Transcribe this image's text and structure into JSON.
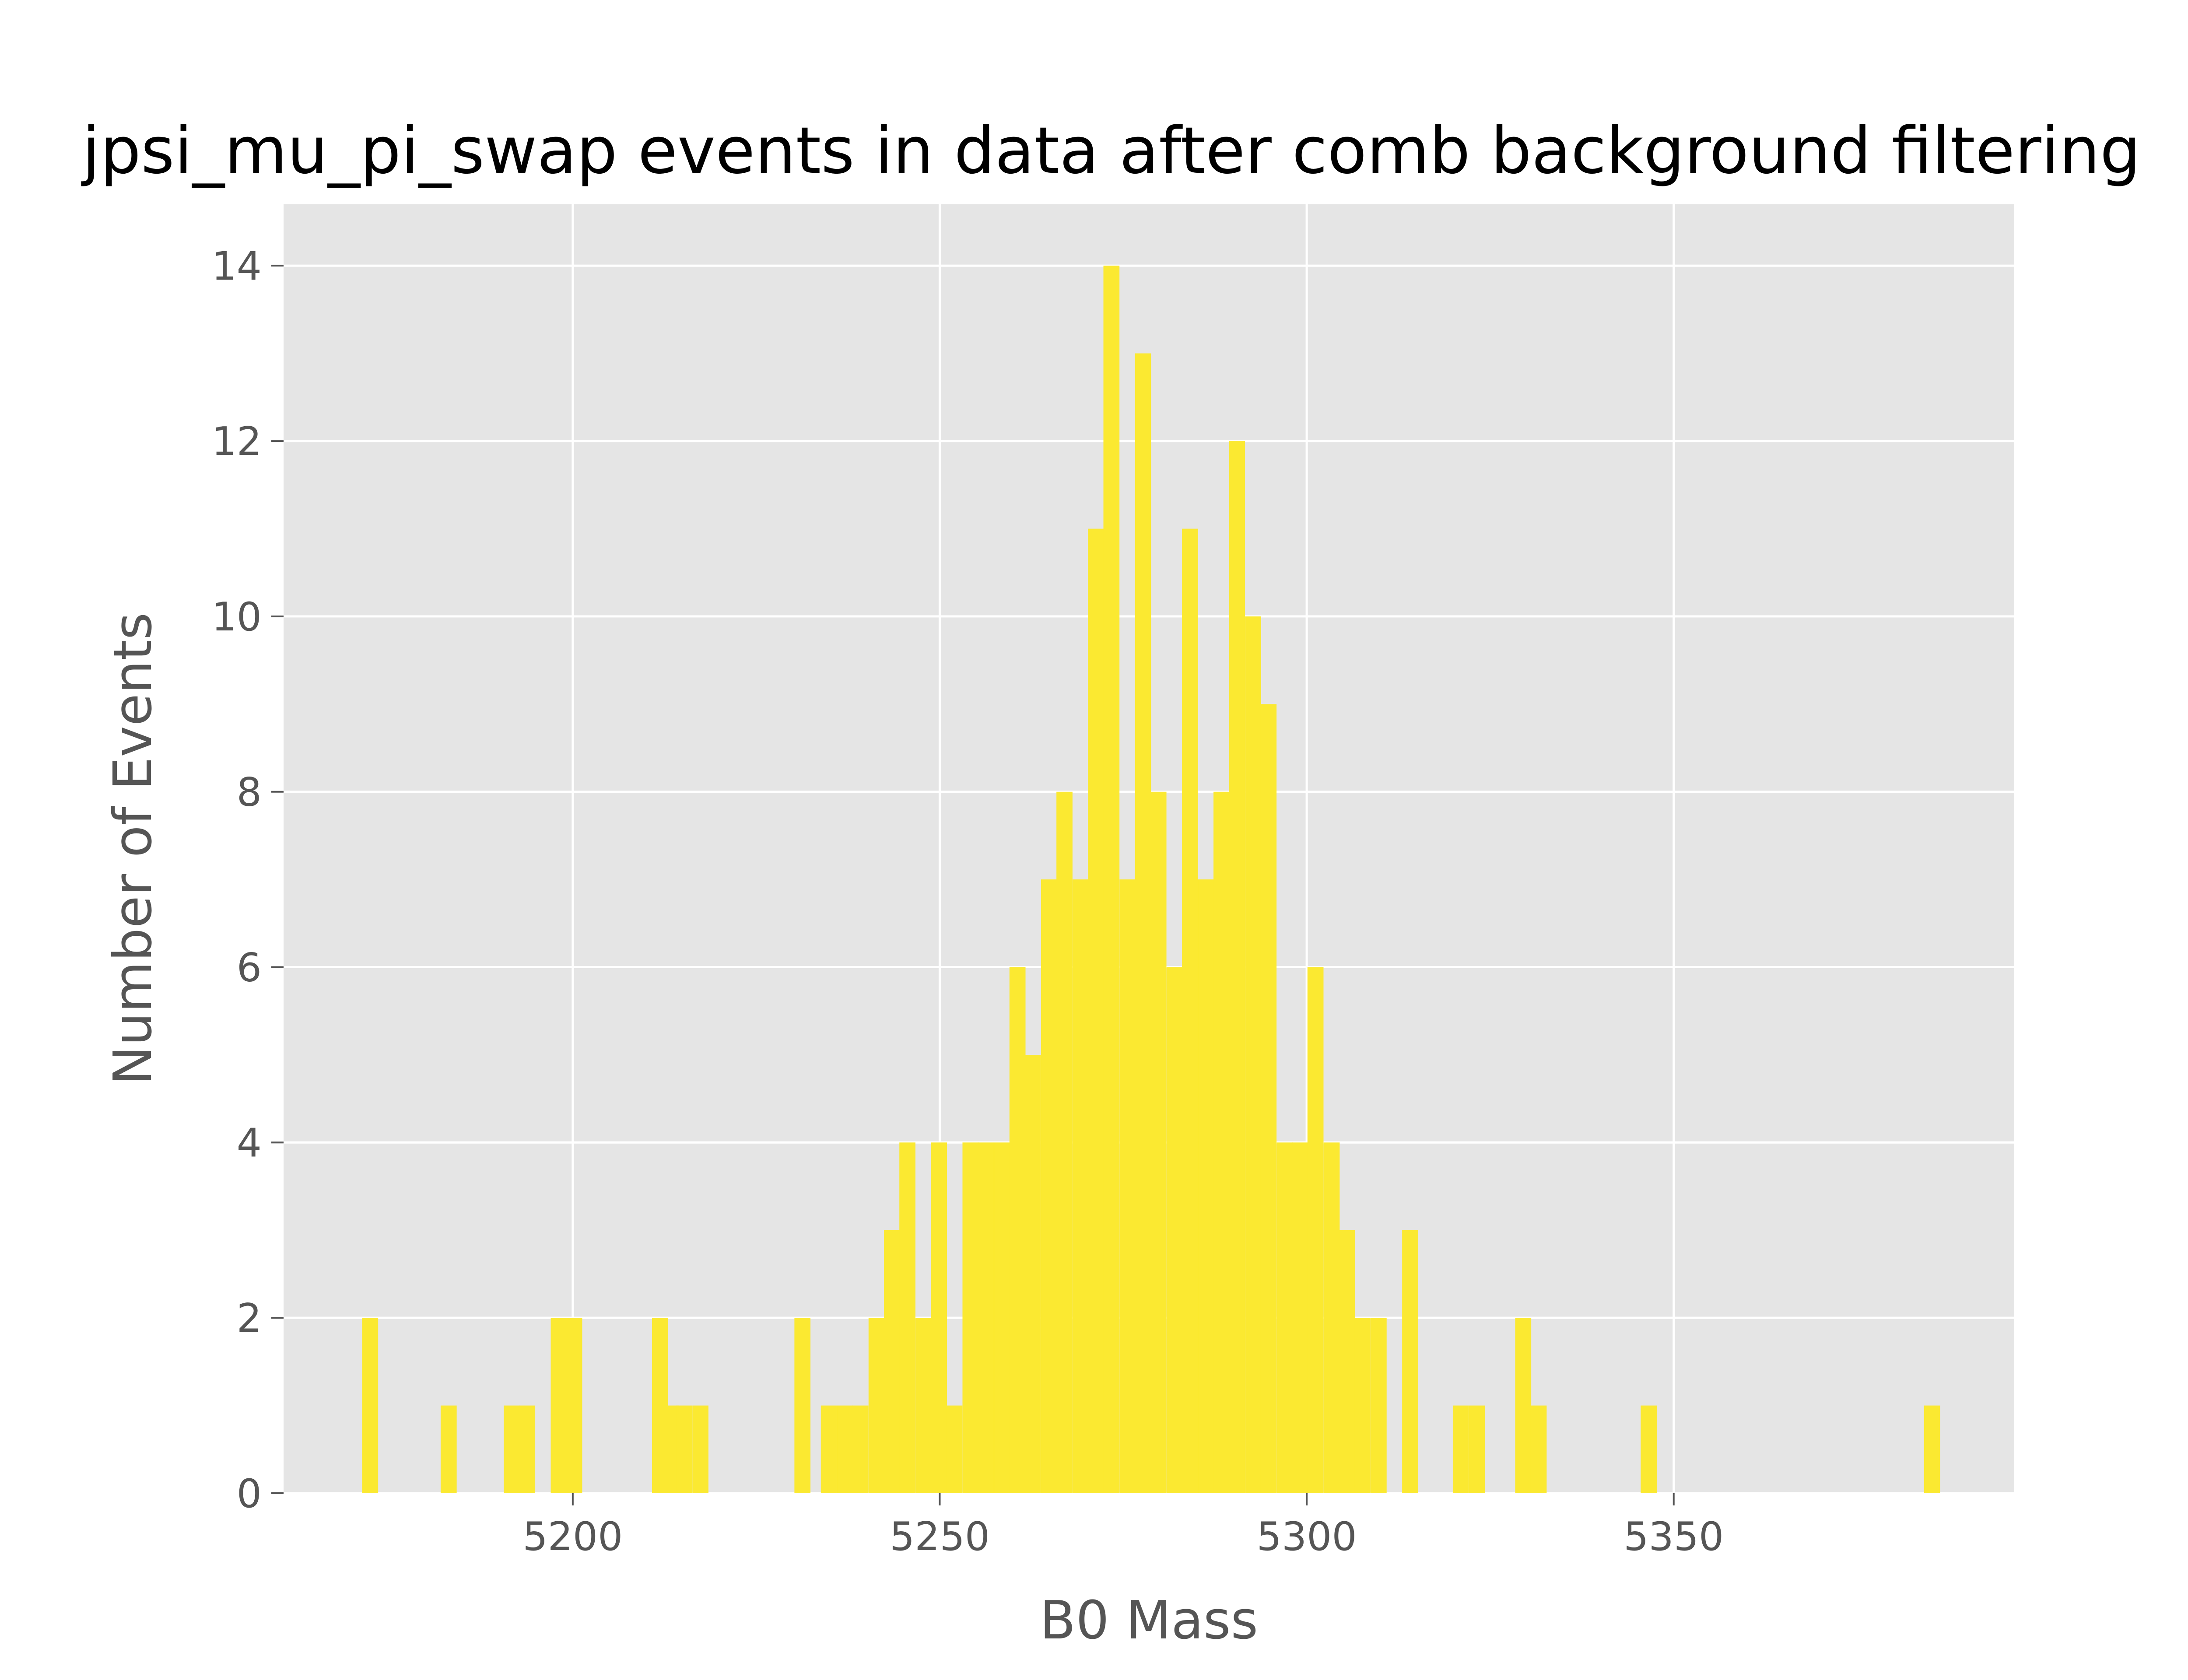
{
  "chart_data": {
    "type": "bar",
    "title": "jpsi_mu_pi_swap events in data after comb background filtering",
    "xlabel": "B0 Mass",
    "ylabel": "Number of Events",
    "xlim": [
      5160.6,
      5396.4
    ],
    "ylim": [
      0,
      14.7
    ],
    "xticks": [
      5200,
      5250,
      5300,
      5350
    ],
    "yticks": [
      0,
      2,
      4,
      6,
      8,
      10,
      12,
      14
    ],
    "grid": true,
    "legend": "none",
    "colors": {
      "bar": "#fbe931",
      "plot_background": "#e5e5e5",
      "grid": "#ffffff",
      "text": "#555555"
    },
    "bin_width": 2.14,
    "bins_left_edge": [
      5171.3,
      5182.0,
      5190.6,
      5192.7,
      5197.0,
      5199.1,
      5210.8,
      5212.3,
      5214.1,
      5216.3,
      5230.2,
      5233.8,
      5236.0,
      5238.1,
      5240.3,
      5242.4,
      5244.5,
      5246.7,
      5248.8,
      5250.9,
      5253.1,
      5255.2,
      5257.4,
      5259.5,
      5261.6,
      5263.8,
      5265.9,
      5268.1,
      5270.2,
      5272.3,
      5274.5,
      5276.6,
      5278.7,
      5280.9,
      5283.0,
      5285.2,
      5287.3,
      5289.4,
      5291.6,
      5293.7,
      5295.9,
      5298.0,
      5300.1,
      5302.3,
      5304.4,
      5306.5,
      5308.7,
      5313.0,
      5319.9,
      5322.1,
      5328.4,
      5330.5,
      5345.5,
      5384.1
    ],
    "values": [
      2,
      1,
      1,
      1,
      2,
      2,
      2,
      1,
      1,
      1,
      2,
      1,
      1,
      1,
      2,
      3,
      4,
      2,
      4,
      1,
      4,
      4,
      4,
      6,
      5,
      7,
      8,
      7,
      11,
      14,
      7,
      13,
      8,
      6,
      11,
      7,
      8,
      12,
      10,
      9,
      4,
      4,
      6,
      4,
      3,
      2,
      2,
      3,
      1,
      1,
      2,
      1,
      1,
      1
    ]
  }
}
